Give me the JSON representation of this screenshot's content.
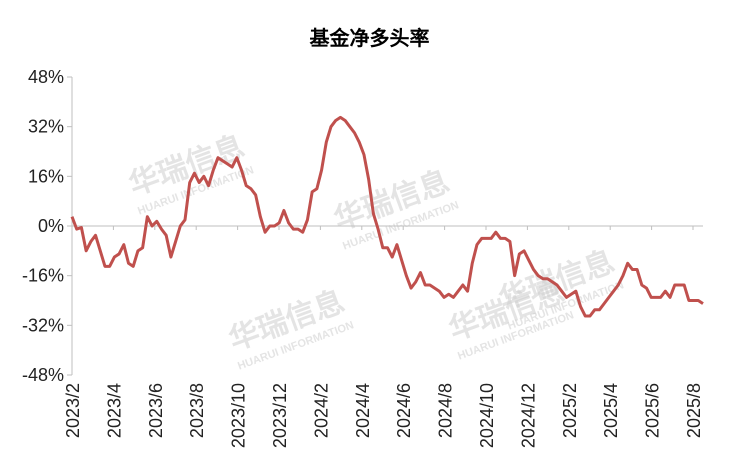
{
  "chart_data": {
    "type": "line",
    "title": "基金净多头率",
    "xlabel": "",
    "ylabel": "",
    "ylim": [
      -48,
      48
    ],
    "y_ticks": [
      "48%",
      "32%",
      "16%",
      "0%",
      "-16%",
      "-32%",
      "-48%"
    ],
    "x_ticks": [
      "2023/2",
      "2023/4",
      "2023/6",
      "2023/8",
      "2023/10",
      "2023/12",
      "2024/2",
      "2024/4",
      "2024/6",
      "2024/8",
      "2024/10",
      "2024/12",
      "2025/2",
      "2025/4",
      "2025/6",
      "2025/8"
    ],
    "grid": false,
    "legend": "none",
    "color": "#c0504d",
    "series": [
      {
        "values": [
          3,
          -1,
          -0.5,
          -8,
          -5,
          -3,
          -8,
          -13,
          -13,
          -10,
          -9,
          -6,
          -12,
          -13,
          -8,
          -7,
          3,
          0,
          1.5,
          -1,
          -3,
          -10,
          -5,
          0,
          2,
          14,
          17,
          14,
          16,
          13,
          18,
          22,
          21,
          20,
          19,
          22,
          18,
          13,
          12,
          10,
          3,
          -2,
          0,
          0,
          1,
          5,
          1,
          -1,
          -1,
          -2,
          2,
          11,
          12,
          18,
          27,
          32,
          34,
          35,
          34,
          32,
          30,
          27,
          23,
          15,
          4,
          -1,
          -7,
          -7,
          -10,
          -6,
          -11,
          -16,
          -20,
          -18,
          -15,
          -19,
          -19,
          -20,
          -21,
          -23,
          -22,
          -23,
          -21,
          -19,
          -21,
          -12,
          -6,
          -4,
          -4,
          -4,
          -2,
          -4,
          -4,
          -5,
          -16,
          -9,
          -8,
          -11,
          -14,
          -16,
          -17,
          -17,
          -18,
          -19,
          -21,
          -23,
          -22,
          -21,
          -26,
          -29,
          -29,
          -27,
          -27,
          -25,
          -23,
          -21,
          -19,
          -16,
          -12,
          -14,
          -14,
          -19,
          -20,
          -23,
          -23,
          -23,
          -21,
          -23,
          -19,
          -19,
          -19,
          -24,
          -24,
          -24,
          -25
        ]
      }
    ],
    "watermarks": [
      "华瑞信息",
      "HUARUI INFORMATION"
    ]
  }
}
